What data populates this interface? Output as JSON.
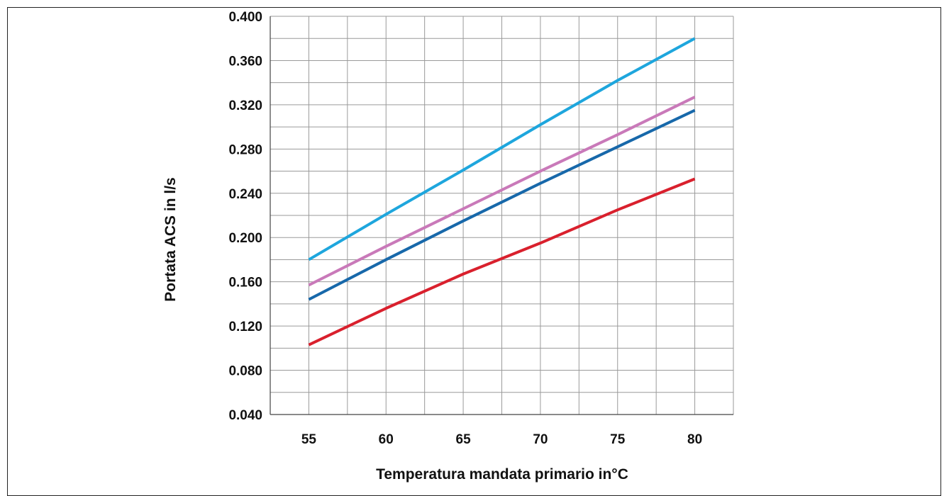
{
  "chart_data": {
    "type": "line",
    "title": "",
    "xlabel": "Temperatura mandata primario in°C",
    "ylabel": "Portata ACS in l/s",
    "xlim": [
      52.5,
      82.5
    ],
    "ylim": [
      0.04,
      0.4
    ],
    "x_ticks": [
      55,
      60,
      65,
      70,
      75,
      80
    ],
    "y_ticks": [
      0.04,
      0.08,
      0.12,
      0.16,
      0.2,
      0.24,
      0.28,
      0.32,
      0.36,
      0.4
    ],
    "y_tick_labels": [
      "0.040",
      "0.080",
      "0.120",
      "0.160",
      "0.200",
      "0.240",
      "0.280",
      "0.320",
      "0.360",
      "0.400"
    ],
    "grid": true,
    "x": [
      55,
      60,
      65,
      70,
      75,
      80
    ],
    "series": [
      {
        "color": "#1ea6dd",
        "values": [
          0.18,
          0.221,
          0.261,
          0.302,
          0.342,
          0.38
        ]
      },
      {
        "color": "#c979b9",
        "values": [
          0.157,
          0.192,
          0.226,
          0.26,
          0.293,
          0.327
        ]
      },
      {
        "color": "#1768aa",
        "values": [
          0.144,
          0.18,
          0.215,
          0.249,
          0.282,
          0.315
        ]
      },
      {
        "color": "#d9202d",
        "values": [
          0.103,
          0.136,
          0.167,
          0.195,
          0.225,
          0.253
        ]
      }
    ]
  }
}
